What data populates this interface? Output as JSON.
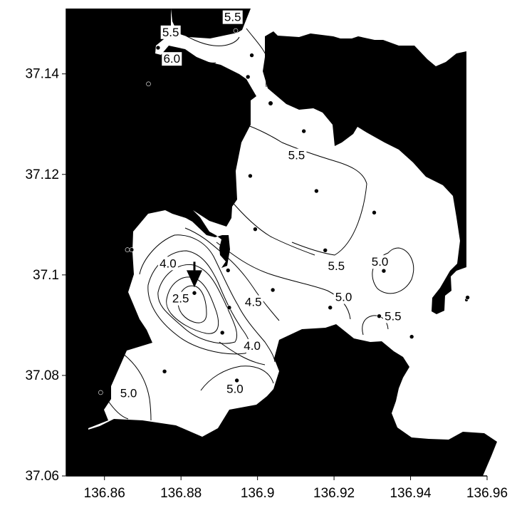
{
  "map": {
    "x_ticks": [
      "136.86",
      "136.88",
      "136.9",
      "136.92",
      "136.94",
      "136.96"
    ],
    "y_ticks": [
      "37.06",
      "37.08",
      "37.1",
      "37.12",
      "37.14"
    ],
    "x_range": [
      136.85,
      136.96
    ],
    "y_range": [
      37.06,
      37.153
    ],
    "land_color": "#000000",
    "water_color": "#ffffff",
    "contour_labels": [
      {
        "text": "5.5",
        "lon": 136.8935,
        "lat": 37.1505
      },
      {
        "text": "5.5",
        "lon": 136.8773,
        "lat": 37.1475
      },
      {
        "text": "6.0",
        "lon": 136.8776,
        "lat": 37.1422
      },
      {
        "text": "5.5",
        "lon": 136.9102,
        "lat": 37.123
      },
      {
        "text": "5.5",
        "lon": 136.9206,
        "lat": 37.101
      },
      {
        "text": "5.0",
        "lon": 136.932,
        "lat": 37.1018
      },
      {
        "text": "5.0",
        "lon": 136.9225,
        "lat": 37.0948
      },
      {
        "text": "4.5",
        "lon": 136.8989,
        "lat": 37.0938
      },
      {
        "text": "4.0",
        "lon": 136.8766,
        "lat": 37.1015
      },
      {
        "text": "2.5",
        "lon": 136.8799,
        "lat": 37.0945
      },
      {
        "text": "4.0",
        "lon": 136.8986,
        "lat": 37.0851
      },
      {
        "text": "5.5",
        "lon": 136.9354,
        "lat": 37.091
      },
      {
        "text": "5.0",
        "lon": 136.8663,
        "lat": 37.0757
      },
      {
        "text": "5.0",
        "lon": 136.8941,
        "lat": 37.0765
      }
    ],
    "stations": [
      {
        "lon": 136.8943,
        "lat": 37.1486
      },
      {
        "lon": 136.874,
        "lat": 37.1452
      },
      {
        "lon": 136.8715,
        "lat": 37.138
      },
      {
        "lon": 136.8985,
        "lat": 37.1437
      },
      {
        "lon": 136.8975,
        "lat": 37.1394
      },
      {
        "lon": 136.9121,
        "lat": 37.1286
      },
      {
        "lon": 136.8981,
        "lat": 37.1197
      },
      {
        "lon": 136.9154,
        "lat": 37.1167
      },
      {
        "lon": 136.9305,
        "lat": 37.1124
      },
      {
        "lon": 136.8994,
        "lat": 37.1091
      },
      {
        "lon": 136.8671,
        "lat": 37.105
      },
      {
        "lon": 136.866,
        "lat": 37.105
      },
      {
        "lon": 136.9177,
        "lat": 37.1049
      },
      {
        "lon": 136.8923,
        "lat": 37.1009
      },
      {
        "lon": 136.933,
        "lat": 37.1008
      },
      {
        "lon": 136.8835,
        "lat": 37.0964
      },
      {
        "lon": 136.904,
        "lat": 37.097
      },
      {
        "lon": 136.8926,
        "lat": 37.0935
      },
      {
        "lon": 136.919,
        "lat": 37.0935
      },
      {
        "lon": 136.9318,
        "lat": 37.0918
      },
      {
        "lon": 136.8908,
        "lat": 37.0885
      },
      {
        "lon": 136.9403,
        "lat": 37.0877
      },
      {
        "lon": 136.9549,
        "lat": 37.0955
      },
      {
        "lon": 136.8757,
        "lat": 37.0808
      },
      {
        "lon": 136.8946,
        "lat": 37.079
      },
      {
        "lon": 136.859,
        "lat": 37.0766
      }
    ],
    "arrow_marker": {
      "lon": 136.8835,
      "lat": 37.0995,
      "direction": "down"
    }
  }
}
